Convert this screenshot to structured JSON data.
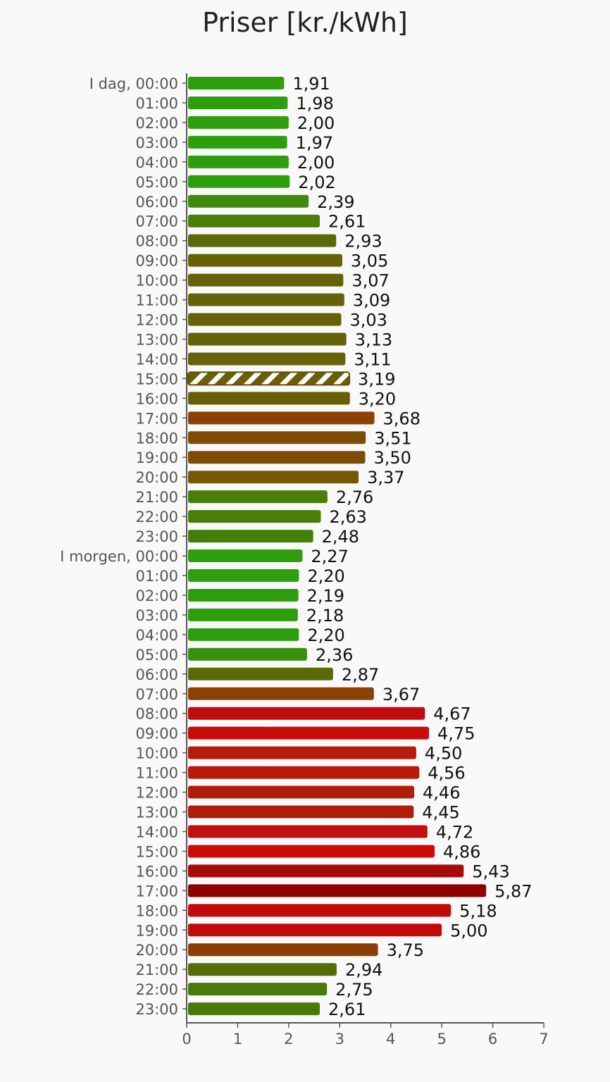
{
  "chart_data": {
    "type": "bar",
    "orientation": "horizontal",
    "title": "Priser [kr./kWh]",
    "categories": [
      "I dag, 00:00",
      "01:00",
      "02:00",
      "03:00",
      "04:00",
      "05:00",
      "06:00",
      "07:00",
      "08:00",
      "09:00",
      "10:00",
      "11:00",
      "12:00",
      "13:00",
      "14:00",
      "15:00",
      "16:00",
      "17:00",
      "18:00",
      "19:00",
      "20:00",
      "21:00",
      "22:00",
      "23:00",
      "I morgen, 00:00",
      "01:00",
      "02:00",
      "03:00",
      "04:00",
      "05:00",
      "06:00",
      "07:00",
      "08:00",
      "09:00",
      "10:00",
      "11:00",
      "12:00",
      "13:00",
      "14:00",
      "15:00",
      "16:00",
      "17:00",
      "18:00",
      "19:00",
      "20:00",
      "21:00",
      "22:00",
      "23:00"
    ],
    "values": [
      1.91,
      1.98,
      2.0,
      1.97,
      2.0,
      2.02,
      2.39,
      2.61,
      2.93,
      3.05,
      3.07,
      3.09,
      3.03,
      3.13,
      3.11,
      3.19,
      3.2,
      3.68,
      3.51,
      3.5,
      3.37,
      2.76,
      2.63,
      2.48,
      2.27,
      2.2,
      2.19,
      2.18,
      2.2,
      2.36,
      2.87,
      3.67,
      4.67,
      4.75,
      4.5,
      4.56,
      4.46,
      4.45,
      4.72,
      4.86,
      5.43,
      5.87,
      5.18,
      5.0,
      3.75,
      2.94,
      2.75,
      2.61
    ],
    "value_labels": [
      "1,91",
      "1,98",
      "2,00",
      "1,97",
      "2,00",
      "2,02",
      "2,39",
      "2,61",
      "2,93",
      "3,05",
      "3,07",
      "3,09",
      "3,03",
      "3,13",
      "3,11",
      "3,19",
      "3,20",
      "3,68",
      "3,51",
      "3,50",
      "3,37",
      "2,76",
      "2,63",
      "2,48",
      "2,27",
      "2,20",
      "2,19",
      "2,18",
      "2,20",
      "2,36",
      "2,87",
      "3,67",
      "4,67",
      "4,75",
      "4,50",
      "4,56",
      "4,46",
      "4,45",
      "4,72",
      "4,86",
      "5,43",
      "5,87",
      "5,18",
      "5,00",
      "3,75",
      "2,94",
      "2,75",
      "2,61"
    ],
    "colors": [
      "#2e9d0e",
      "#2e9d0e",
      "#2e9d0e",
      "#2e9d0e",
      "#2e9d0e",
      "#2e9d0e",
      "#3f8a0c",
      "#4a7d0a",
      "#5a6a08",
      "#656207",
      "#656207",
      "#656207",
      "#656207",
      "#656207",
      "#656207",
      "#6a5f06",
      "#6a5f06",
      "#8c4204",
      "#7e4d05",
      "#7e4d05",
      "#745806",
      "#4a7d0a",
      "#4a7d0a",
      "#437f0b",
      "#2e9d0e",
      "#2e9d0e",
      "#2e9d0e",
      "#2e9d0e",
      "#2e9d0e",
      "#3a8f0c",
      "#5a6a08",
      "#8a4205",
      "#c00c0c",
      "#c80c0c",
      "#b51a0a",
      "#b81a0a",
      "#b01e0a",
      "#b01e0a",
      "#c21010",
      "#cc0a0a",
      "#a80a0a",
      "#8f0000",
      "#c20a0a",
      "#c20a0a",
      "#8a3f05",
      "#556d08",
      "#4a7a0a",
      "#4a7a0a"
    ],
    "highlighted_index": 15,
    "xlim": [
      0,
      7
    ],
    "xticks": [
      "0",
      "1",
      "2",
      "3",
      "4",
      "5",
      "6",
      "7"
    ],
    "grid": false
  }
}
